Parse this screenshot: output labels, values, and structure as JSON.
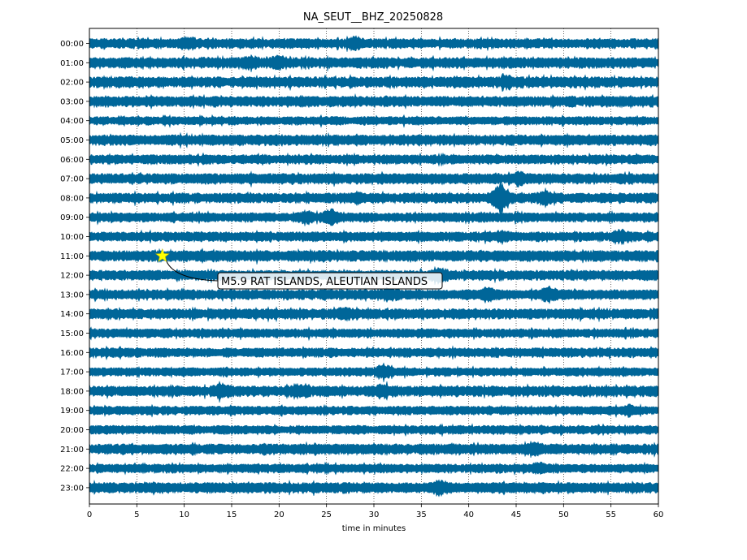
{
  "chart_data": {
    "type": "line",
    "title": "NA_SEUT__BHZ_20250828",
    "xlabel": "time in minutes",
    "ylabel": "",
    "xlim": [
      0,
      60
    ],
    "x_ticks": [
      0,
      5,
      10,
      15,
      20,
      25,
      30,
      35,
      40,
      45,
      50,
      55,
      60
    ],
    "y_categories": [
      "00:00",
      "01:00",
      "02:00",
      "03:00",
      "04:00",
      "05:00",
      "06:00",
      "07:00",
      "08:00",
      "09:00",
      "10:00",
      "11:00",
      "12:00",
      "13:00",
      "14:00",
      "15:00",
      "16:00",
      "17:00",
      "18:00",
      "19:00",
      "20:00",
      "21:00",
      "22:00",
      "23:00"
    ],
    "grid": "vertical dotted",
    "trace_color": "#006699",
    "event": {
      "label": "M5.9 RAT ISLANDS, ALEUTIAN ISLANDS",
      "time_minutes": 7.7,
      "hour_row": "11:00",
      "marker": "star",
      "marker_color": "#ffff00"
    },
    "bursts": [
      {
        "hour": "00:00",
        "minute": 10.5,
        "strength": 1.6
      },
      {
        "hour": "00:00",
        "minute": 28,
        "strength": 1.6
      },
      {
        "hour": "01:00",
        "minute": 17,
        "strength": 1.5
      },
      {
        "hour": "01:00",
        "minute": 20,
        "strength": 1.6
      },
      {
        "hour": "02:00",
        "minute": 44,
        "strength": 1.4
      },
      {
        "hour": "07:00",
        "minute": 45.5,
        "strength": 1.5
      },
      {
        "hour": "08:00",
        "minute": 28,
        "strength": 1.5
      },
      {
        "hour": "08:00",
        "minute": 43.3,
        "strength": 3.2
      },
      {
        "hour": "08:00",
        "minute": 48,
        "strength": 1.6
      },
      {
        "hour": "09:00",
        "minute": 23,
        "strength": 1.5
      },
      {
        "hour": "09:00",
        "minute": 25.5,
        "strength": 2.0
      },
      {
        "hour": "10:00",
        "minute": 43.5,
        "strength": 1.5
      },
      {
        "hour": "10:00",
        "minute": 56,
        "strength": 1.7
      },
      {
        "hour": "12:00",
        "minute": 37,
        "strength": 1.6
      },
      {
        "hour": "13:00",
        "minute": 31.5,
        "strength": 1.5
      },
      {
        "hour": "13:00",
        "minute": 42,
        "strength": 1.6
      },
      {
        "hour": "13:00",
        "minute": 48.5,
        "strength": 1.8
      },
      {
        "hour": "14:00",
        "minute": 27,
        "strength": 1.5
      },
      {
        "hour": "17:00",
        "minute": 31,
        "strength": 1.9
      },
      {
        "hour": "18:00",
        "minute": 14,
        "strength": 1.8
      },
      {
        "hour": "18:00",
        "minute": 22,
        "strength": 1.6
      },
      {
        "hour": "18:00",
        "minute": 31,
        "strength": 1.6
      },
      {
        "hour": "19:00",
        "minute": 57,
        "strength": 1.5
      },
      {
        "hour": "21:00",
        "minute": 47,
        "strength": 1.5
      },
      {
        "hour": "22:00",
        "minute": 47.5,
        "strength": 1.6
      },
      {
        "hour": "23:00",
        "minute": 37,
        "strength": 1.6
      }
    ]
  }
}
